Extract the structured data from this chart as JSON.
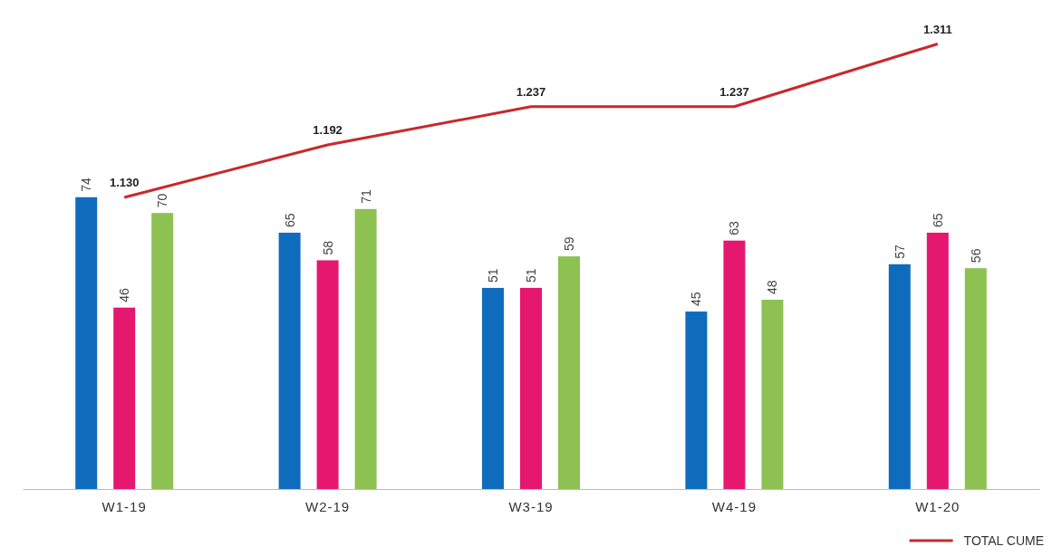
{
  "chart_data": {
    "type": "bar",
    "categories": [
      "W1-19",
      "W2-19",
      "W3-19",
      "W4-19",
      "W1-20"
    ],
    "series": [
      {
        "color": "#0f6cbd",
        "values": [
          74,
          65,
          51,
          45,
          57
        ]
      },
      {
        "color": "#e6176f",
        "values": [
          46,
          58,
          51,
          63,
          65
        ]
      },
      {
        "color": "#8dc152",
        "values": [
          70,
          71,
          59,
          48,
          56
        ]
      },
      {
        "name": "TOTAL CUME",
        "type": "line",
        "axis": "y2",
        "color": "#c8282e",
        "values": [
          1.13,
          1.192,
          1.237,
          1.237,
          1.311
        ],
        "value_labels": [
          "1.130",
          "1.192",
          "1.237",
          "1.237",
          "1.311"
        ]
      }
    ],
    "data_labels": true,
    "tick_labels": "x",
    "legend": "bottom right",
    "line_style": "solid",
    "marker": "none"
  }
}
